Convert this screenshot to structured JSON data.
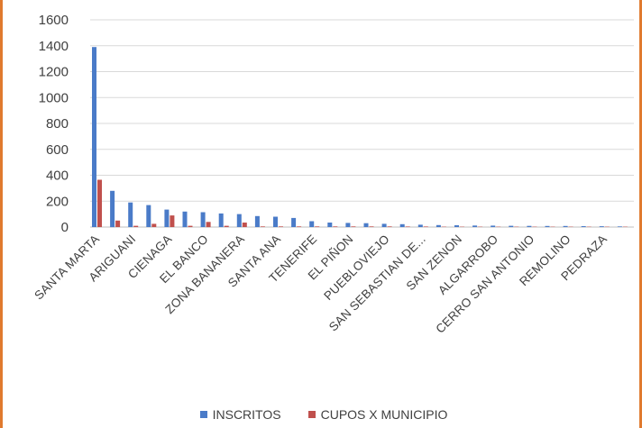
{
  "chart_data": {
    "type": "bar",
    "title": "",
    "xlabel": "",
    "ylabel": "",
    "ylim": [
      0,
      1600
    ],
    "yticks": [
      0,
      200,
      400,
      600,
      800,
      1000,
      1200,
      1400,
      1600
    ],
    "grid": true,
    "legend_position": "bottom",
    "categories": [
      "SANTA MARTA",
      "",
      "ARIGUANI",
      "",
      "CIENAGA",
      "",
      "EL BANCO",
      "",
      "ZONA BANANERA",
      "",
      "SANTA ANA",
      "",
      "TENERIFE",
      "",
      "EL PIÑON",
      "",
      "PUEBLOVIEJO",
      "",
      "SAN SEBASTIAN DE...",
      "",
      "SAN ZENON",
      "",
      "ALGARROBO",
      "",
      "CERRO SAN ANTONIO",
      "",
      "REMOLINO",
      "",
      "PEDRAZA",
      ""
    ],
    "series": [
      {
        "name": "INSCRITOS",
        "color": "#4a7bc8",
        "values": [
          1390,
          280,
          190,
          170,
          135,
          120,
          115,
          105,
          100,
          85,
          80,
          70,
          45,
          35,
          32,
          30,
          25,
          22,
          18,
          15,
          14,
          12,
          11,
          10,
          9,
          8,
          8,
          7,
          6,
          5
        ]
      },
      {
        "name": "CUPOS X MUNICIPIO",
        "color": "#c0504d",
        "values": [
          365,
          50,
          10,
          25,
          90,
          10,
          40,
          10,
          35,
          5,
          5,
          5,
          5,
          5,
          5,
          5,
          5,
          4,
          4,
          3,
          3,
          3,
          3,
          3,
          3,
          3,
          3,
          3,
          3,
          3
        ]
      }
    ]
  }
}
